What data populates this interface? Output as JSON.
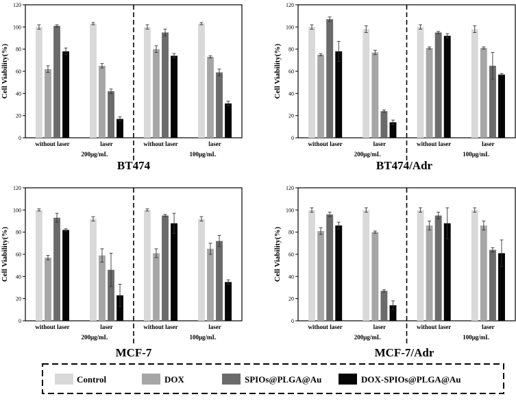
{
  "colors": {
    "Control": "#d9d9d9",
    "DOX": "#a6a6a6",
    "SPIOs@PLGA@Au": "#6b6b6b",
    "DOX-SPIOs@PLGA@Au": "#050505"
  },
  "legend": {
    "position": "bottom",
    "items": [
      "Control",
      "DOX",
      "SPIOs@PLGA@Au",
      "DOX-SPIOs@PLGA@Au"
    ]
  },
  "chart_data": [
    {
      "type": "bar",
      "title": "BT474",
      "ylabel": "Cell Viability(%)",
      "ylim": [
        0,
        120
      ],
      "yticks": [
        0,
        20,
        40,
        60,
        80,
        100,
        120
      ],
      "categories": [
        "without laser",
        "laser",
        "without laser",
        "laser"
      ],
      "concentrations": [
        "200μg/mL",
        "100μg/mL"
      ],
      "series": [
        {
          "name": "Control",
          "values": [
            100,
            103,
            100,
            103
          ],
          "errors": [
            2,
            1,
            2,
            1
          ]
        },
        {
          "name": "DOX",
          "values": [
            62,
            65,
            80,
            73
          ],
          "errors": [
            3,
            2,
            3,
            1
          ]
        },
        {
          "name": "SPIOs@PLGA@Au",
          "values": [
            101,
            42,
            95,
            59
          ],
          "errors": [
            1,
            2,
            3,
            3
          ]
        },
        {
          "name": "DOX-SPIOs@PLGA@Au",
          "values": [
            78,
            17,
            74,
            31
          ],
          "errors": [
            3,
            2,
            2,
            2
          ]
        }
      ]
    },
    {
      "type": "bar",
      "title": "BT474/Adr",
      "ylabel": "Cell Viability(%)",
      "ylim": [
        0,
        120
      ],
      "yticks": [
        0,
        20,
        40,
        60,
        80,
        100,
        120
      ],
      "categories": [
        "without laser",
        "laser",
        "without laser",
        "laser"
      ],
      "concentrations": [
        "200μg/mL",
        "100μg/mL"
      ],
      "series": [
        {
          "name": "Control",
          "values": [
            100,
            98,
            100,
            98
          ],
          "errors": [
            2,
            3,
            2,
            3
          ]
        },
        {
          "name": "DOX",
          "values": [
            75,
            77,
            81,
            81
          ],
          "errors": [
            1,
            2,
            1,
            1
          ]
        },
        {
          "name": "SPIOs@PLGA@Au",
          "values": [
            107,
            24,
            95,
            65
          ],
          "errors": [
            2,
            1,
            1,
            12
          ]
        },
        {
          "name": "DOX-SPIOs@PLGA@Au",
          "values": [
            78,
            14,
            92,
            57
          ],
          "errors": [
            9,
            2,
            2,
            1
          ]
        }
      ]
    },
    {
      "type": "bar",
      "title": "MCF-7",
      "ylabel": "Cell Viability(%)",
      "ylim": [
        0,
        120
      ],
      "yticks": [
        0,
        20,
        40,
        60,
        80,
        100,
        120
      ],
      "categories": [
        "without laser",
        "laser",
        "without laser",
        "laser"
      ],
      "concentrations": [
        "200μg/mL",
        "100μg/mL"
      ],
      "series": [
        {
          "name": "Control",
          "values": [
            100,
            92,
            100,
            92
          ],
          "errors": [
            1,
            2,
            1,
            2
          ]
        },
        {
          "name": "DOX",
          "values": [
            57,
            59,
            61,
            65
          ],
          "errors": [
            2,
            6,
            4,
            5
          ]
        },
        {
          "name": "SPIOs@PLGA@Au",
          "values": [
            93,
            46,
            95,
            72
          ],
          "errors": [
            4,
            15,
            1,
            5
          ]
        },
        {
          "name": "DOX-SPIOs@PLGA@Au",
          "values": [
            82,
            23,
            88,
            35
          ],
          "errors": [
            1,
            10,
            9,
            2
          ]
        }
      ]
    },
    {
      "type": "bar",
      "title": "MCF-7/Adr",
      "ylabel": "Cell Viability(%)",
      "ylim": [
        0,
        120
      ],
      "yticks": [
        0,
        20,
        40,
        60,
        80,
        100,
        120
      ],
      "categories": [
        "without laser",
        "laser",
        "without laser",
        "laser"
      ],
      "concentrations": [
        "200μg/mL",
        "100μg/mL"
      ],
      "series": [
        {
          "name": "Control",
          "values": [
            100,
            100,
            100,
            100
          ],
          "errors": [
            2,
            2,
            2,
            2
          ]
        },
        {
          "name": "DOX",
          "values": [
            81,
            80,
            86,
            86
          ],
          "errors": [
            3,
            1,
            4,
            4
          ]
        },
        {
          "name": "SPIOs@PLGA@Au",
          "values": [
            96,
            27,
            95,
            64
          ],
          "errors": [
            2,
            1,
            3,
            2
          ]
        },
        {
          "name": "DOX-SPIOs@PLGA@Au",
          "values": [
            86,
            14,
            88,
            61
          ],
          "errors": [
            3,
            4,
            14,
            12
          ]
        }
      ]
    }
  ]
}
